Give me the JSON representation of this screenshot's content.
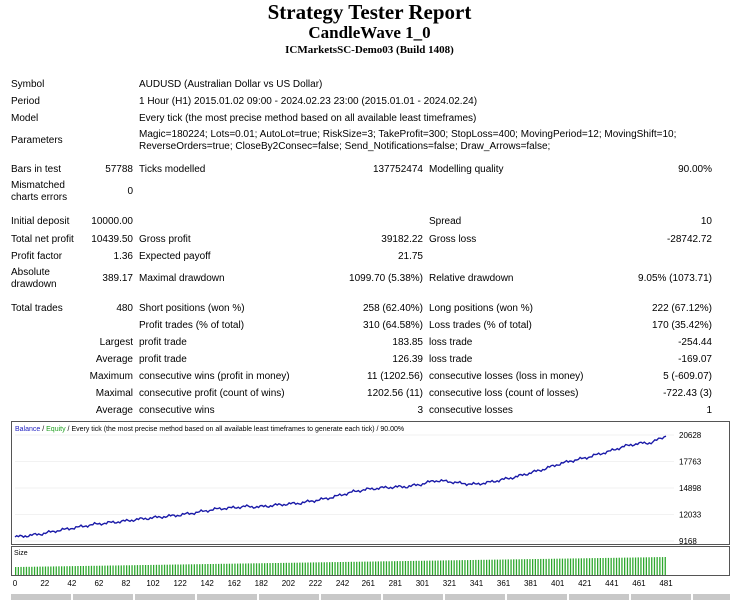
{
  "header": {
    "title": "Strategy Tester Report",
    "ea_name": "CandleWave 1_0",
    "server": "ICMarketsSC-Demo03 (Build 1408)"
  },
  "settings": {
    "symbol_label": "Symbol",
    "symbol_value": "AUDUSD (Australian Dollar vs US Dollar)",
    "period_label": "Period",
    "period_value": "1 Hour (H1) 2015.01.02 09:00 - 2024.02.23 23:00 (2015.01.01 - 2024.02.24)",
    "model_label": "Model",
    "model_value": "Every tick (the most precise method based on all available least timeframes)",
    "parameters_label": "Parameters",
    "parameters_value": "Magic=180224; Lots=0.01; AutoLot=true; RiskSize=3; TakeProfit=300; StopLoss=400; MovingPeriod=12; MovingShift=10; ReverseOrders=true; CloseBy2Consec=false; Send_Notifications=false; Draw_Arrows=false;"
  },
  "stats": {
    "bars_label": "Bars in test",
    "bars_value": "57788",
    "ticks_label": "Ticks modelled",
    "ticks_value": "137752474",
    "quality_label": "Modelling quality",
    "quality_value": "90.00%",
    "mismatch_label": "Mismatched charts errors",
    "mismatch_value": "0",
    "deposit_label": "Initial deposit",
    "deposit_value": "10000.00",
    "spread_label": "Spread",
    "spread_value": "10",
    "netprofit_label": "Total net profit",
    "netprofit_value": "10439.50",
    "grossprofit_label": "Gross profit",
    "grossprofit_value": "39182.22",
    "grossloss_label": "Gross loss",
    "grossloss_value": "-28742.72",
    "pf_label": "Profit factor",
    "pf_value": "1.36",
    "payoff_label": "Expected payoff",
    "payoff_value": "21.75",
    "absdd_label": "Absolute drawdown",
    "absdd_value": "389.17",
    "maxdd_label": "Maximal drawdown",
    "maxdd_value": "1099.70 (5.38%)",
    "reldd_label": "Relative drawdown",
    "reldd_value": "9.05% (1073.71)",
    "trades_label": "Total trades",
    "trades_value": "480",
    "short_label": "Short positions (won %)",
    "short_value": "258 (62.40%)",
    "long_label": "Long positions (won %)",
    "long_value": "222 (67.12%)",
    "ptrades_label": "Profit trades (% of total)",
    "ptrades_value": "310 (64.58%)",
    "ltrades_label": "Loss trades (% of total)",
    "ltrades_value": "170 (35.42%)",
    "largest_label": "Largest",
    "largest_profit_label": "profit trade",
    "largest_profit_value": "183.85",
    "largest_loss_label": "loss trade",
    "largest_loss_value": "-254.44",
    "average_label": "Average",
    "average_profit_label": "profit trade",
    "average_profit_value": "126.39",
    "average_loss_label": "loss trade",
    "average_loss_value": "-169.07",
    "maximum_label": "Maximum",
    "max_wins_label": "consecutive wins (profit in money)",
    "max_wins_value": "11 (1202.56)",
    "max_losses_label": "consecutive losses (loss in money)",
    "max_losses_value": "5 (-609.07)",
    "maximal_label": "Maximal",
    "maximal_profit_label": "consecutive profit (count of wins)",
    "maximal_profit_value": "1202.56 (11)",
    "maximal_loss_label": "consecutive loss (count of losses)",
    "maximal_loss_value": "-722.43 (3)",
    "avg_consec_label": "Average",
    "avg_wins_label": "consecutive wins",
    "avg_wins_value": "3",
    "avg_losses_label": "consecutive losses",
    "avg_losses_value": "1"
  },
  "chart_data": {
    "type": "line",
    "legend_balance": "Balance",
    "legend_sep": " / ",
    "legend_equity": "Equity",
    "legend_rest": " / Every tick (the most precise method based on all available least timeframes to generate each tick) / 90.00%",
    "volume_label": "Size",
    "yticks": [
      "20628",
      "17763",
      "14898",
      "12033",
      "9168"
    ],
    "ylim": [
      9168,
      20628
    ],
    "xticks": [
      "0",
      "22",
      "42",
      "62",
      "82",
      "102",
      "122",
      "142",
      "162",
      "182",
      "202",
      "222",
      "242",
      "261",
      "281",
      "301",
      "321",
      "341",
      "361",
      "381",
      "401",
      "421",
      "441",
      "461",
      "481"
    ],
    "xlim": [
      0,
      481
    ],
    "series": [
      {
        "name": "Balance",
        "color": "#1a1aa8",
        "x": [
          0,
          10,
          20,
          30,
          40,
          50,
          60,
          70,
          80,
          90,
          100,
          110,
          120,
          130,
          140,
          150,
          160,
          170,
          180,
          190,
          200,
          210,
          220,
          230,
          240,
          250,
          260,
          270,
          280,
          290,
          300,
          310,
          320,
          330,
          340,
          350,
          360,
          370,
          380,
          390,
          400,
          410,
          420,
          430,
          440,
          450,
          460,
          470,
          481
        ],
        "y": [
          9600,
          9750,
          9950,
          10250,
          10500,
          10750,
          11000,
          11150,
          11300,
          11500,
          11650,
          11800,
          11950,
          12150,
          12400,
          12650,
          12750,
          12900,
          12850,
          13000,
          13150,
          13250,
          13500,
          13750,
          14100,
          14500,
          14750,
          14900,
          15000,
          15050,
          15300,
          15700,
          15600,
          15400,
          15300,
          15500,
          15800,
          16100,
          16500,
          16900,
          17400,
          17800,
          18100,
          18500,
          18900,
          19400,
          19700,
          19800,
          20500
        ]
      }
    ],
    "volume_color": "#2ea82e"
  }
}
